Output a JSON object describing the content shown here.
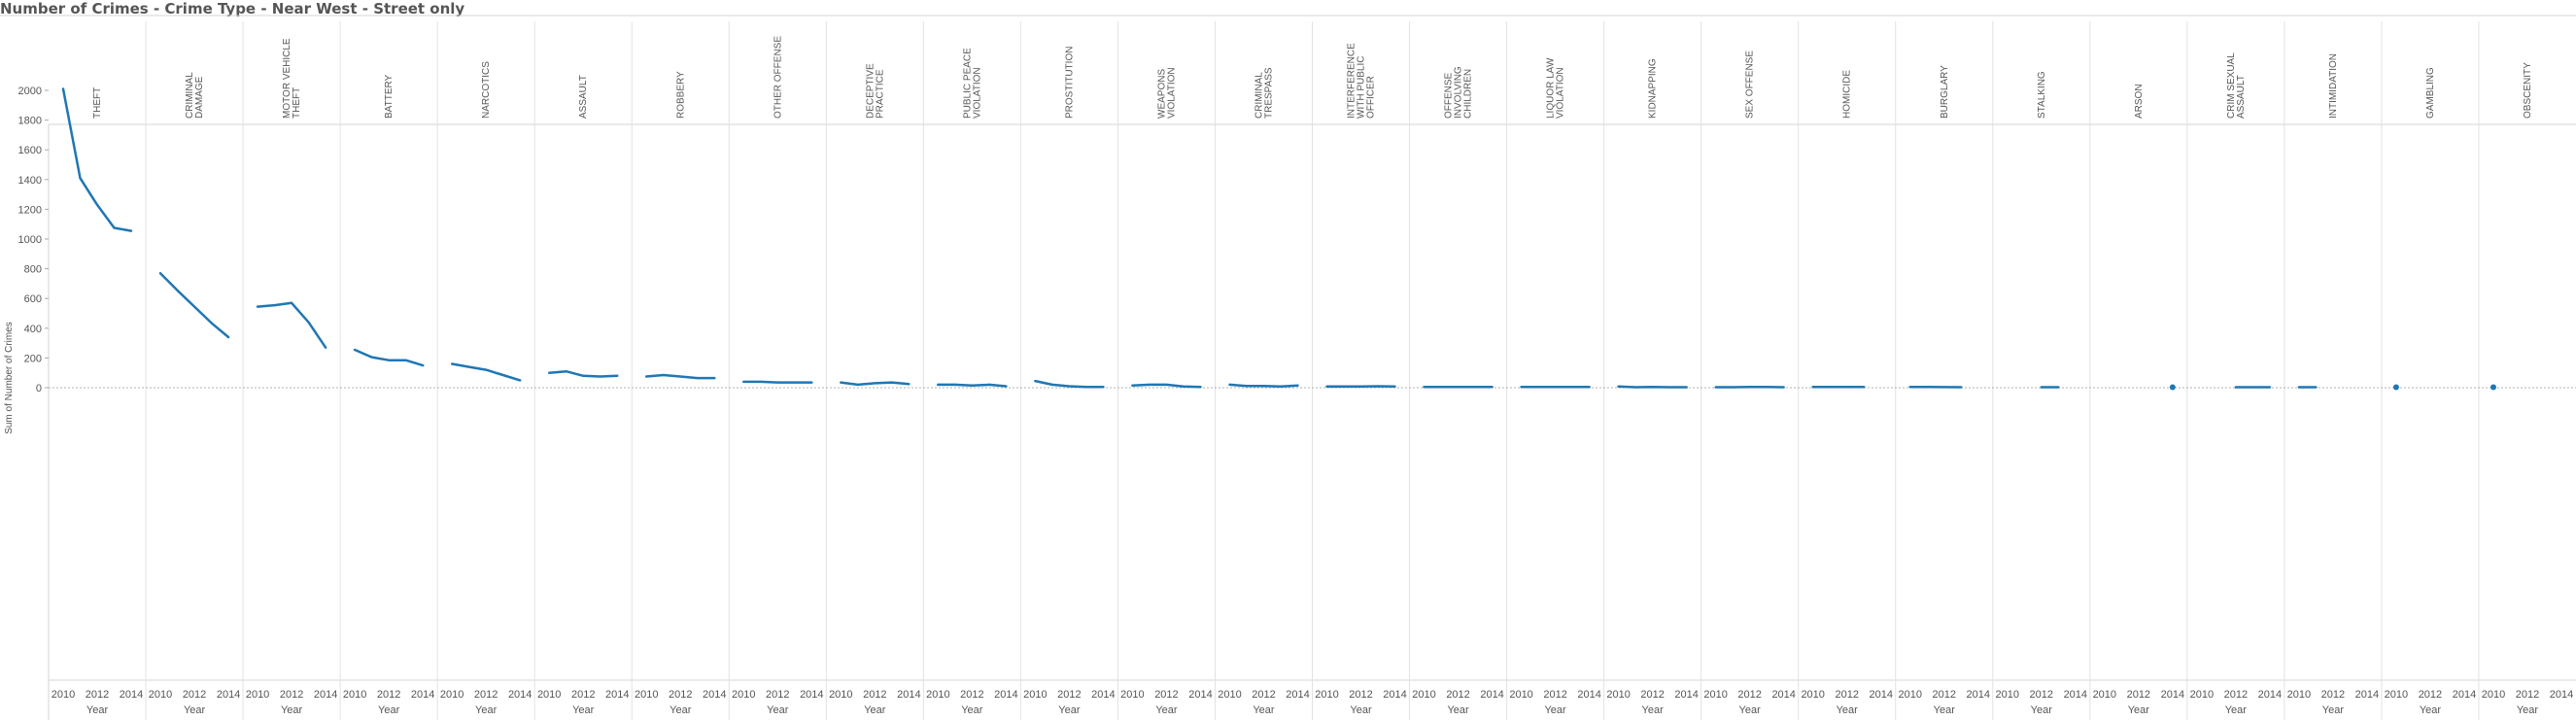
{
  "title": "Number of Crimes - Crime Type - Near West - Street only",
  "chart_data": {
    "type": "line",
    "title": "Number of Crimes - Crime Type - Near West - Street only",
    "ylabel": "Sum of Number of Crimes",
    "xlabel": "Year",
    "x": [
      2010,
      2011,
      2012,
      2013,
      2014
    ],
    "x_tick_labels": [
      "2010",
      "2012",
      "2014"
    ],
    "yticks": [
      0,
      200,
      400,
      600,
      800,
      1000,
      1200,
      1400,
      1600,
      1800,
      2000
    ],
    "ylim": [
      -90,
      2080
    ],
    "grid": "dotted zero line, vertical panel dividers",
    "line_color": "#1f77b4",
    "series": [
      {
        "name": "THEFT",
        "values": [
          2010,
          1410,
          1230,
          1075,
          1055
        ]
      },
      {
        "name": "CRIMINAL DAMAGE",
        "values": [
          770,
          655,
          545,
          435,
          340
        ]
      },
      {
        "name": "MOTOR VEHICLE THEFT",
        "values": [
          545,
          555,
          570,
          440,
          270
        ]
      },
      {
        "name": "BATTERY",
        "values": [
          255,
          205,
          185,
          185,
          150
        ]
      },
      {
        "name": "NARCOTICS",
        "values": [
          160,
          140,
          120,
          85,
          50
        ]
      },
      {
        "name": "ASSAULT",
        "values": [
          100,
          110,
          80,
          75,
          80
        ]
      },
      {
        "name": "ROBBERY",
        "values": [
          75,
          85,
          75,
          65,
          65
        ]
      },
      {
        "name": "OTHER OFFENSE",
        "values": [
          40,
          40,
          35,
          35,
          35
        ]
      },
      {
        "name": "DECEPTIVE PRACTICE",
        "values": [
          35,
          20,
          30,
          35,
          25
        ]
      },
      {
        "name": "PUBLIC PEACE VIOLATION",
        "values": [
          20,
          20,
          15,
          20,
          10
        ]
      },
      {
        "name": "PROSTITUTION",
        "values": [
          45,
          20,
          10,
          5,
          5
        ]
      },
      {
        "name": "WEAPONS VIOLATION",
        "values": [
          15,
          20,
          20,
          8,
          5
        ]
      },
      {
        "name": "CRIMINAL TRESPASS",
        "values": [
          20,
          12,
          12,
          8,
          15
        ]
      },
      {
        "name": "INTERFERENCE WITH PUBLIC OFFICER",
        "values": [
          8,
          8,
          8,
          10,
          8
        ]
      },
      {
        "name": "OFFENSE INVOLVING CHILDREN",
        "values": [
          5,
          5,
          5,
          5,
          5
        ]
      },
      {
        "name": "LIQUOR LAW VIOLATION",
        "values": [
          5,
          5,
          5,
          5,
          5
        ]
      },
      {
        "name": "KIDNAPPING",
        "values": [
          8,
          3,
          5,
          3,
          3
        ]
      },
      {
        "name": "SEX OFFENSE",
        "values": [
          3,
          3,
          5,
          5,
          3
        ]
      },
      {
        "name": "HOMICIDE",
        "values": [
          5,
          5,
          5,
          5,
          null
        ]
      },
      {
        "name": "BURGLARY",
        "values": [
          5,
          5,
          4,
          3,
          null
        ]
      },
      {
        "name": "STALKING",
        "values": [
          null,
          null,
          3,
          3,
          null
        ]
      },
      {
        "name": "ARSON",
        "values": [
          null,
          null,
          null,
          null,
          3
        ]
      },
      {
        "name": "CRIM SEXUAL ASSAULT",
        "values": [
          null,
          null,
          3,
          3,
          3
        ]
      },
      {
        "name": "INTIMIDATION",
        "values": [
          3,
          3,
          null,
          null,
          null
        ]
      },
      {
        "name": "GAMBLING",
        "values": [
          3,
          null,
          null,
          null,
          null
        ]
      },
      {
        "name": "OBSCENITY",
        "values": [
          3,
          null,
          null,
          null,
          null
        ]
      }
    ]
  }
}
